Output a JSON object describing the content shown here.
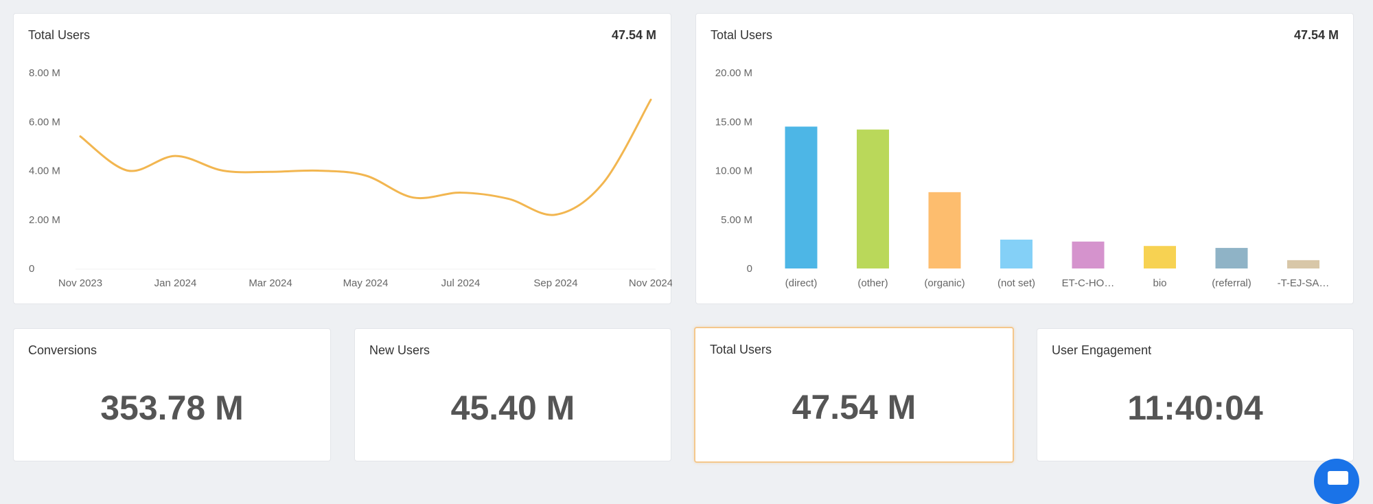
{
  "line_card": {
    "title": "Total Users",
    "total": "47.54 M"
  },
  "bar_card": {
    "title": "Total Users",
    "total": "47.54 M"
  },
  "kpis": [
    {
      "title": "Conversions",
      "value": "353.78 M"
    },
    {
      "title": "New Users",
      "value": "45.40 M"
    },
    {
      "title": "Total Users",
      "value": "47.54 M"
    },
    {
      "title": "User Engagement",
      "value": "11:40:04"
    }
  ],
  "chart_data": [
    {
      "type": "line",
      "title": "Total Users",
      "x_labels": [
        "Nov 2023",
        "Jan 2024",
        "Mar 2024",
        "May 2024",
        "Jul 2024",
        "Sep 2024",
        "Nov 2024"
      ],
      "y_tick_labels": [
        "0",
        "2.00 M",
        "4.00 M",
        "6.00 M",
        "8.00 M"
      ],
      "ylim": [
        0,
        8
      ],
      "y_unit": "M",
      "grid": false,
      "color": "#f2b650",
      "series": [
        {
          "x": [
            "2023-11",
            "2023-12",
            "2024-01",
            "2024-02",
            "2024-03",
            "2024-04",
            "2024-05",
            "2024-06",
            "2024-07",
            "2024-08",
            "2024-09",
            "2024-10",
            "2024-11"
          ],
          "values": [
            5.4,
            4.0,
            4.6,
            4.0,
            3.95,
            4.0,
            3.8,
            2.9,
            3.1,
            2.85,
            2.2,
            3.5,
            6.9
          ]
        }
      ]
    },
    {
      "type": "bar",
      "title": "Total Users",
      "categories": [
        "(direct)",
        "(other)",
        "(organic)",
        "(not set)",
        "ET-C-HO…",
        "bio",
        "(referral)",
        "-T-EJ-SA…"
      ],
      "values": [
        14.5,
        14.2,
        7.8,
        2.95,
        2.75,
        2.3,
        2.1,
        0.85
      ],
      "colors": [
        "#4db6e6",
        "#bad85a",
        "#fdbd6e",
        "#84d0f7",
        "#d593cd",
        "#f7d252",
        "#8fb3c6",
        "#d8c7a8"
      ],
      "y_tick_labels": [
        "0",
        "5.00 M",
        "10.00 M",
        "15.00 M",
        "20.00 M"
      ],
      "ylim": [
        0,
        20
      ],
      "y_unit": "M",
      "grid": false
    }
  ]
}
